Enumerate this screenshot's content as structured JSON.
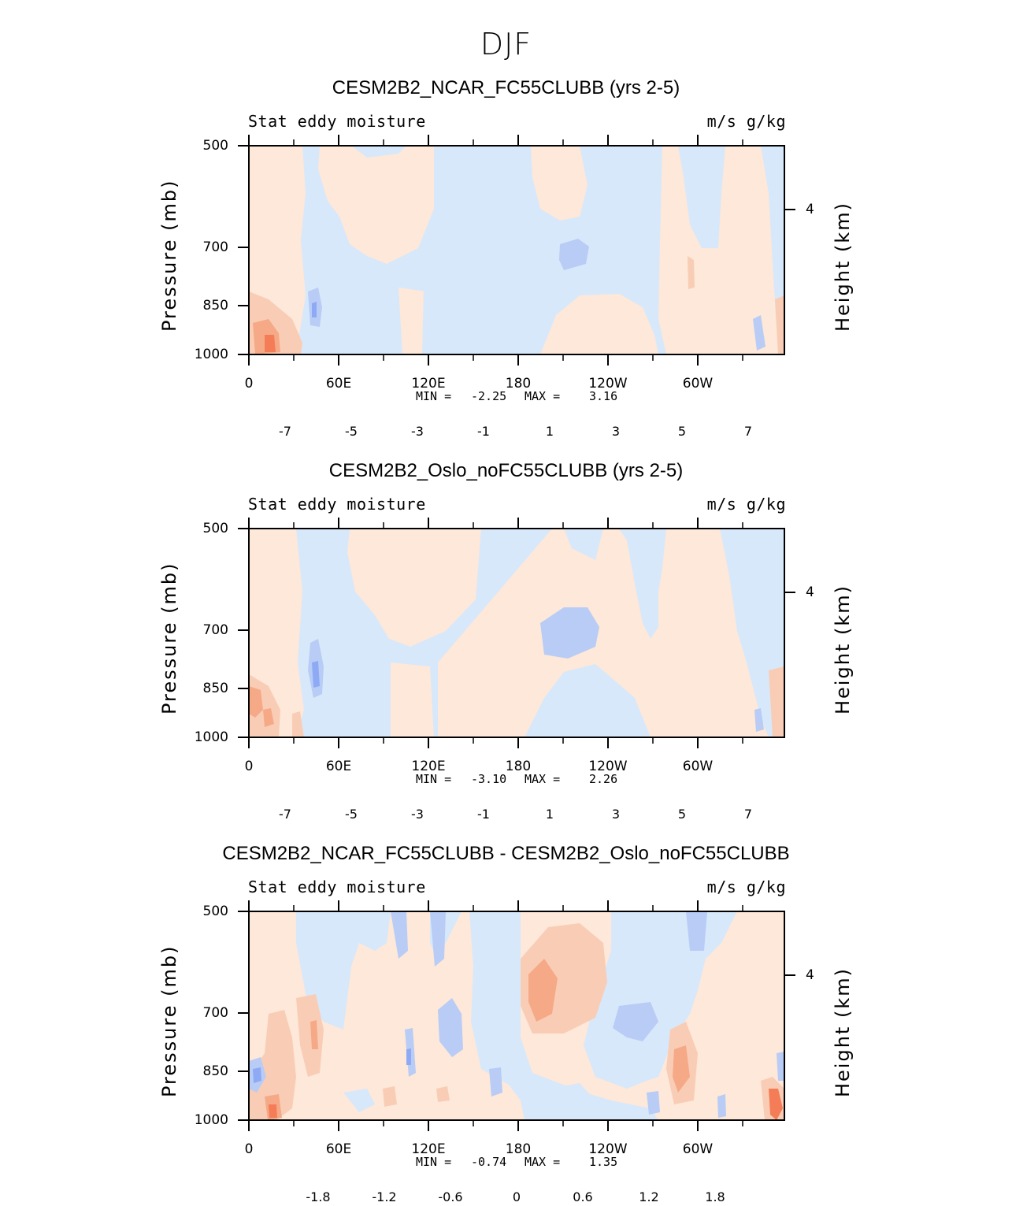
{
  "figure_title": "DJF",
  "colors": {
    "scale": [
      "#00008B",
      "#0A23B0",
      "#1F44DD",
      "#3B66F0",
      "#5E86F2",
      "#8FAAF4",
      "#B8CCF6",
      "#D7E8FB",
      "#FDE8D9",
      "#F9CDB5",
      "#F6A987",
      "#F47D58",
      "#F15A2E",
      "#D83A18",
      "#A8210E",
      "#7A0B05"
    ]
  },
  "chart_data": [
    {
      "type": "heatmap",
      "title": "CESM2B2_NCAR_FC55CLUBB (yrs 2-5)",
      "subtitle_left": "Stat eddy moisture",
      "subtitle_right": "m/s g/kg",
      "ylabel": "Pressure (mb)",
      "ylabel_right": "Height (km)",
      "y_ticks": [
        "500",
        "700",
        "850",
        "1000"
      ],
      "y_right_ticks": [
        "4"
      ],
      "x_ticks": [
        "0",
        "60E",
        "120E",
        "180",
        "120W",
        "60W"
      ],
      "min_label": "MIN =",
      "min_value": "-2.25",
      "max_label": "MAX =",
      "max_value": "3.16",
      "colorbar_labels": [
        "-7",
        "-5",
        "-3",
        "-1",
        "1",
        "3",
        "5",
        "7"
      ]
    },
    {
      "type": "heatmap",
      "title": "CESM2B2_Oslo_noFC55CLUBB (yrs 2-5)",
      "subtitle_left": "Stat eddy moisture",
      "subtitle_right": "m/s g/kg",
      "ylabel": "Pressure (mb)",
      "ylabel_right": "Height (km)",
      "y_ticks": [
        "500",
        "700",
        "850",
        "1000"
      ],
      "y_right_ticks": [
        "4"
      ],
      "x_ticks": [
        "0",
        "60E",
        "120E",
        "180",
        "120W",
        "60W"
      ],
      "min_label": "MIN =",
      "min_value": "-3.10",
      "max_label": "MAX =",
      "max_value": "2.26",
      "colorbar_labels": [
        "-7",
        "-5",
        "-3",
        "-1",
        "1",
        "3",
        "5",
        "7"
      ]
    },
    {
      "type": "heatmap",
      "title": "CESM2B2_NCAR_FC55CLUBB - CESM2B2_Oslo_noFC55CLUBB",
      "subtitle_left": "Stat eddy moisture",
      "subtitle_right": "m/s g/kg",
      "ylabel": "Pressure (mb)",
      "ylabel_right": "Height (km)",
      "y_ticks": [
        "500",
        "700",
        "850",
        "1000"
      ],
      "y_right_ticks": [
        "4"
      ],
      "x_ticks": [
        "0",
        "60E",
        "120E",
        "180",
        "120W",
        "60W"
      ],
      "min_label": "MIN =",
      "min_value": "-0.74",
      "max_label": "MAX =",
      "max_value": "1.35",
      "colorbar_labels": [
        "-1.8",
        "-1.2",
        "-0.6",
        "0",
        "0.6",
        "1.2",
        "1.8"
      ]
    }
  ]
}
